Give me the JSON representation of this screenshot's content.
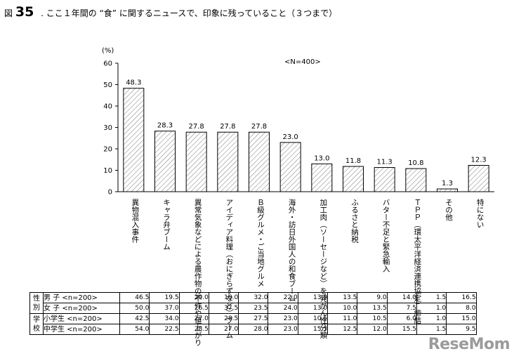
{
  "title": {
    "fig_label": "図",
    "fig_num": "35",
    "text": ". ここ１年間の “食” に関するニュースで、印象に残っていること（３つまで）"
  },
  "watermark": "ReseMom",
  "chart_data": {
    "type": "bar",
    "unit_label": "(%)",
    "sample_label": "<N=400>",
    "ylim": [
      0,
      60
    ],
    "yticks": [
      0,
      10,
      20,
      30,
      40,
      50,
      60
    ],
    "categories": [
      "異物混入事件",
      "キャラ弁ブーム",
      "異常気象などによる農作物の不作や値上がり",
      "アイディア料理（おにぎらずなど）ブーム",
      "Ｂ級グルメ・ご当地グルメ",
      "海外・訪日外国人の和食ブーム",
      "加工肉（ソーセージなど）を発がん性分類",
      "ふるさと納税",
      "バター不足と緊急輸入",
      "ＴＰＰ（環太平洋経済連携協定）締結",
      "その他",
      "特にない"
    ],
    "values": [
      48.3,
      28.3,
      27.8,
      27.8,
      27.8,
      23.0,
      13.0,
      11.8,
      11.3,
      10.8,
      1.3,
      12.3
    ],
    "value_labels": [
      "48.3",
      "28.3",
      "27.8",
      "27.8",
      "27.8",
      "23.0",
      "13.0",
      "11.8",
      "11.3",
      "10.8",
      "1.3",
      "12.3"
    ],
    "bar_pattern": "diagonal-hatch",
    "breakdown_table": {
      "groups": [
        {
          "label": "性別",
          "rows": [
            {
              "label": "男 子 <n=200>",
              "values": [
                "46.5",
                "19.5",
                "29.0",
                "18.0",
                "32.0",
                "22.0",
                "13.0",
                "13.5",
                "9.0",
                "14.0",
                "1.5",
                "16.5"
              ]
            },
            {
              "label": "女 子 <n=200>",
              "values": [
                "50.0",
                "37.0",
                "26.5",
                "37.5",
                "23.5",
                "24.0",
                "13.0",
                "10.0",
                "13.5",
                "7.5",
                "1.0",
                "8.0"
              ]
            }
          ]
        },
        {
          "label": "学校",
          "rows": [
            {
              "label": "小学生 <n=200>",
              "values": [
                "42.5",
                "34.0",
                "27.0",
                "28.5",
                "27.5",
                "23.0",
                "10.5",
                "11.0",
                "10.5",
                "6.0",
                "1.0",
                "15.0"
              ]
            },
            {
              "label": "中学生 <n=200>",
              "values": [
                "54.0",
                "22.5",
                "28.5",
                "27.0",
                "28.0",
                "23.0",
                "15.5",
                "12.5",
                "12.0",
                "15.5",
                "1.5",
                "9.5"
              ]
            }
          ]
        }
      ]
    }
  }
}
